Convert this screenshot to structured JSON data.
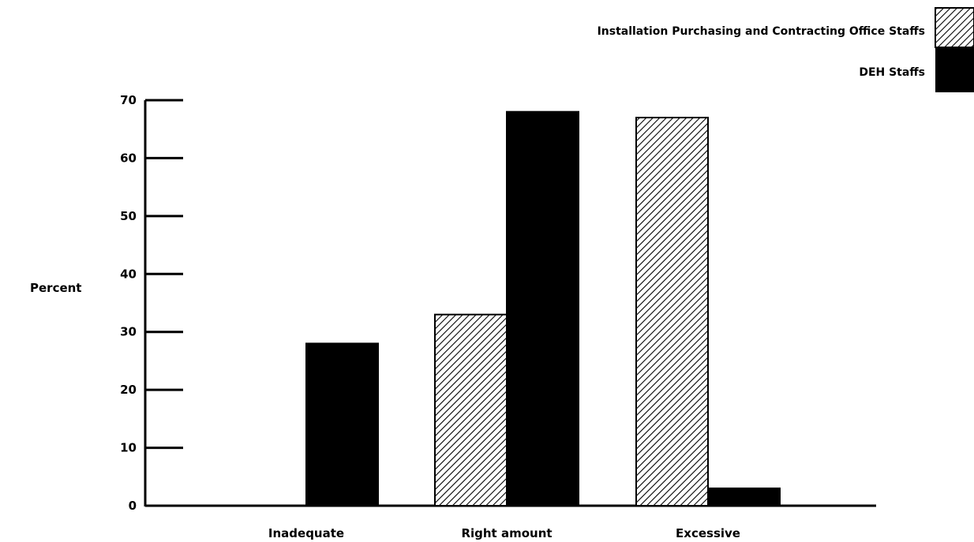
{
  "chart_data": {
    "type": "bar",
    "title": "",
    "xlabel": "",
    "ylabel": "Percent",
    "ylim": [
      0,
      70
    ],
    "yticks": [
      0,
      10,
      20,
      30,
      40,
      50,
      60,
      70
    ],
    "categories": [
      "Inadequate",
      "Right amount",
      "Excessive"
    ],
    "series": [
      {
        "name": "Installation Purchasing and Contracting Office Staffs",
        "pattern": "diagonal-hatch",
        "color": "#000000",
        "values": [
          0,
          33,
          67
        ]
      },
      {
        "name": "DEH Staffs",
        "pattern": "solid",
        "color": "#000000",
        "values": [
          28,
          68,
          3
        ]
      }
    ],
    "legend_position": "top-right",
    "grid": false
  }
}
